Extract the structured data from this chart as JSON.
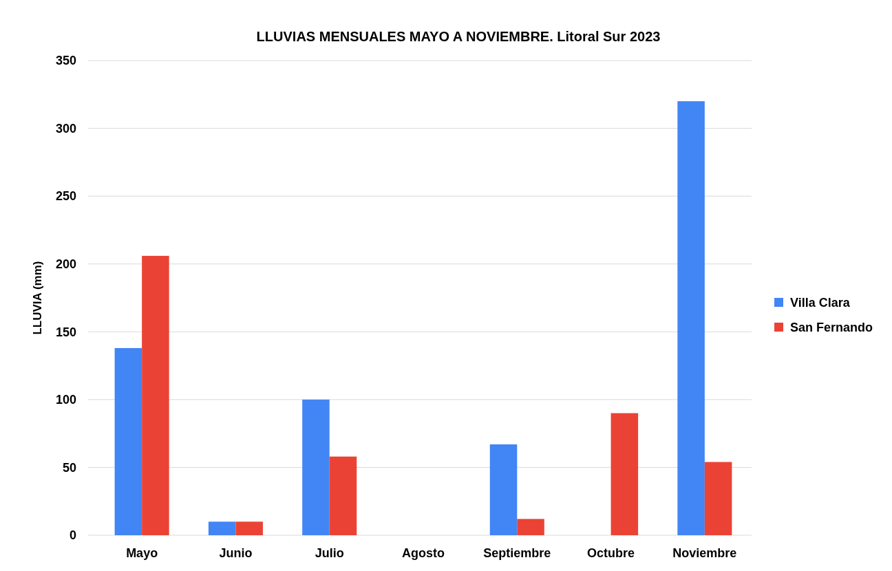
{
  "chart_data": {
    "type": "bar",
    "title": "LLUVIAS MENSUALES  MAYO A NOVIEMBRE. Litoral Sur 2023",
    "ylabel": "LLUVIA (mm)",
    "categories": [
      "Mayo",
      "Junio",
      "Julio",
      "Agosto",
      "Septiembre",
      "Octubre",
      "Noviembre"
    ],
    "series": [
      {
        "name": "Villa Clara",
        "color": "#4285f4",
        "values": [
          138,
          10,
          100,
          0,
          67,
          0,
          320
        ]
      },
      {
        "name": "San Fernando",
        "color": "#ea4335",
        "values": [
          206,
          10,
          58,
          0,
          12,
          90,
          54
        ]
      }
    ],
    "ylim": [
      0,
      350
    ],
    "yticks": [
      0,
      50,
      100,
      150,
      200,
      250,
      300,
      350
    ],
    "grid": "y",
    "legend": "right"
  }
}
